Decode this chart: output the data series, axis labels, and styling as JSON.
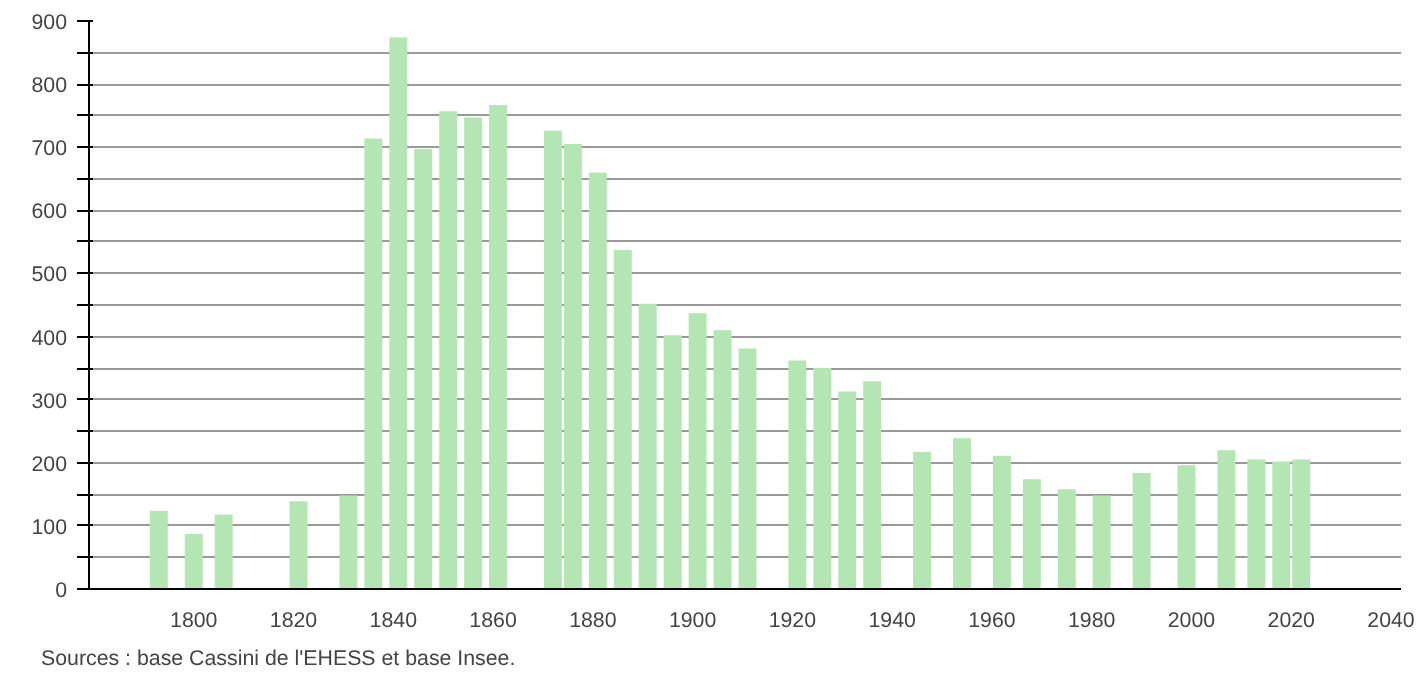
{
  "chart_data": {
    "type": "bar",
    "x": [
      1793,
      1800,
      1806,
      1821,
      1831,
      1836,
      1841,
      1846,
      1851,
      1856,
      1861,
      1872,
      1876,
      1881,
      1886,
      1891,
      1896,
      1901,
      1906,
      1911,
      1921,
      1926,
      1931,
      1936,
      1946,
      1954,
      1962,
      1968,
      1975,
      1982,
      1990,
      1999,
      2007,
      2013,
      2018,
      2022
    ],
    "values": [
      124,
      87,
      118,
      139,
      148,
      714,
      874,
      697,
      757,
      747,
      767,
      726,
      705,
      660,
      537,
      452,
      402,
      437,
      410,
      381,
      362,
      350,
      313,
      329,
      217,
      239,
      211,
      174,
      158,
      148,
      184,
      196,
      220,
      205,
      202,
      205
    ],
    "color": "#b3e6b3",
    "xlim": [
      1779,
      2042
    ],
    "xticks": [
      1800,
      1820,
      1840,
      1860,
      1880,
      1900,
      1920,
      1940,
      1960,
      1980,
      2000,
      2020,
      2040
    ],
    "ylim": [
      0,
      900
    ],
    "yticks": [
      0,
      {
        "value": 50,
        "label": null
      },
      100,
      {
        "value": 150,
        "label": null
      },
      200,
      {
        "value": 250,
        "label": null
      },
      300,
      {
        "value": 350,
        "label": null
      },
      400,
      {
        "value": 450,
        "label": null
      },
      500,
      {
        "value": 550,
        "label": null
      },
      600,
      {
        "value": 650,
        "label": null
      },
      700,
      {
        "value": 750,
        "label": null
      },
      800,
      {
        "value": 850,
        "label": null
      },
      900
    ],
    "grid": "y",
    "annotations": [
      "Sources : base Cassini de l'EHESS et base Insee."
    ]
  }
}
